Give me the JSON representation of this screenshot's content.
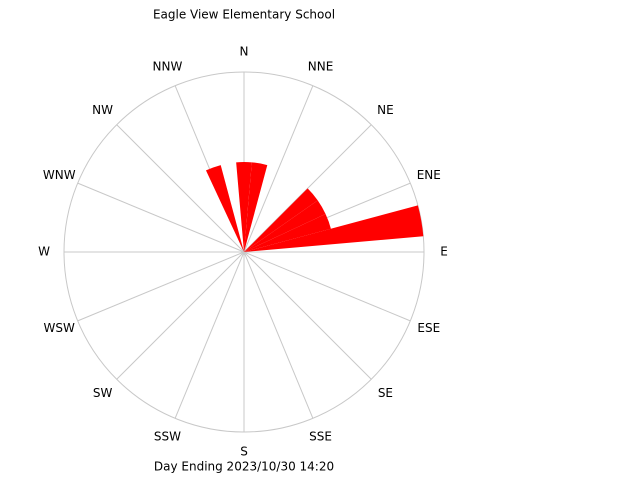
{
  "chart_data": {
    "type": "rose",
    "title": "Eagle View Elementary School",
    "subtitle": "Day Ending 2023/10/30 14:20",
    "directions": [
      "N",
      "NNE",
      "NE",
      "ENE",
      "E",
      "ESE",
      "SE",
      "SSE",
      "S",
      "SSW",
      "SW",
      "WSW",
      "W",
      "WNW",
      "NW",
      "NNW"
    ],
    "x": [
      340,
      0,
      10,
      50,
      60,
      70,
      80
    ],
    "values": [
      50,
      50,
      50,
      50,
      50,
      50,
      100
    ],
    "rlim": [
      0,
      100
    ],
    "bin_width": 10,
    "color": "#ff0000"
  }
}
